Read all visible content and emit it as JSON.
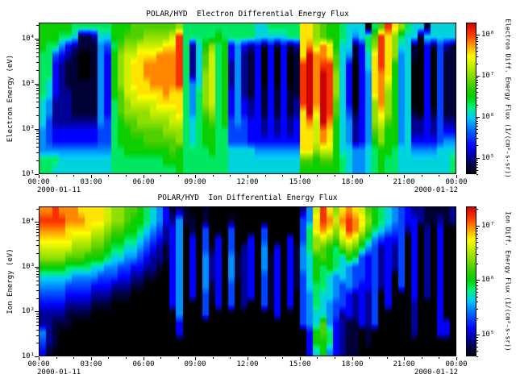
{
  "page": {
    "background": "#ffffff"
  },
  "colormap": {
    "stops": [
      [
        0.0,
        "#000000"
      ],
      [
        0.07,
        "#00003a"
      ],
      [
        0.13,
        "#000090"
      ],
      [
        0.2,
        "#0000ff"
      ],
      [
        0.3,
        "#0064ff"
      ],
      [
        0.38,
        "#00c8ff"
      ],
      [
        0.45,
        "#00f080"
      ],
      [
        0.52,
        "#00d000"
      ],
      [
        0.58,
        "#38cc00"
      ],
      [
        0.65,
        "#80dc00"
      ],
      [
        0.72,
        "#c0ec00"
      ],
      [
        0.78,
        "#ffff00"
      ],
      [
        0.85,
        "#ffa000"
      ],
      [
        0.92,
        "#ff3c00"
      ],
      [
        1.0,
        "#cc0000"
      ]
    ]
  },
  "chart_data": [
    {
      "type": "heatmap",
      "title": "POLAR/HYD  Electron Differential Energy Flux",
      "ylabel": "Electron Energy (eV)",
      "date_left": "2000-01-11",
      "date_right": "2000-01-12",
      "x_axis": {
        "unit": "time (HH:MM)",
        "range_hours": [
          0,
          24
        ],
        "major_tick_hours": 3,
        "minor_tick_hours": 1,
        "labels": [
          "00:00",
          "03:00",
          "06:00",
          "09:00",
          "12:00",
          "15:00",
          "18:00",
          "21:00",
          "00:00"
        ]
      },
      "y_axis": {
        "scale": "log",
        "range_log10_eV": [
          1.0,
          4.35
        ],
        "ticks": [
          {
            "label": "10⁴",
            "log10": 4
          },
          {
            "label": "10³",
            "log10": 3
          },
          {
            "label": "10²",
            "log10": 2
          },
          {
            "label": "10¹",
            "log10": 1
          }
        ]
      },
      "colorbar": {
        "label": "Electron Diff. Energy Flux (1/(cm²-s-sr))",
        "range_log10_flux": [
          4.6,
          8.3
        ],
        "ticks": [
          {
            "label": "10⁸",
            "log10": 8
          },
          {
            "label": "10⁷",
            "log10": 7
          },
          {
            "label": "10⁶",
            "log10": 6
          },
          {
            "label": "10⁵",
            "log10": 5
          }
        ]
      },
      "grid": {
        "description": "Electron flux spectrogram. 16 energy rows (top = ~10^4.35 eV down to 10^1 eV, log spaced) x 64 time columns (22.5 min each, 00:00 to 24:00 UT). Hex digit 0-15: 0 = black (flux <= 10^4.6), 15 = 10^8.3 (1/(cm^2-s-sr)), log-linear in between.",
        "rows": 16,
        "cols": 64,
        "data": [
          "888887777778889999999a777777777776677777cca9887666​79eca766166666",
          "8887761126688999aaaabe777778777776666677cca988765679eca766166666",
          "8775321115479aabbbbcce7268a7835323131312cdbdc866137aeca661031421",
          "774321001538abbcccddde7269b7835213030301cfddc965136ceca561030411",
          "773211001538abccddddde7269b7825213030301efdee963036cec8560030411",
          "773211001538abccddddde726ab7825213030301efdfea63035cdc8560030411",
          "763211111538abcccdddde756ab7825213030301efdfea63035cdb8560030411",
          "7632211115389bbccccdcc757ab7835213131311efdfea63035cda8560030411",
          "6522211115379abbbbcccc757ab7835323131312efdfe963035ada8560030411",
          "6522211115379aaaabbbbc7579a7835323131312cfcfe964135aca8561031411",
          "642222222547899aaaaabb767897845433232323cdbfd865235ab98562232422",
          "5433333334478899999aaa767887744433232323ccbdc8652359a88562232433",
          "543333333447888899999a767887744433333333ccbdc8652358a88563333455",
          "5555555555577888888898777787766665555555ccabb8665567887665555666",
          "7776666666677777777888777777766666666666998998765567877666666667",
          "7766666666677777777778777777766666666666888888765567877666666667"
        ]
      }
    },
    {
      "type": "heatmap",
      "title": "POLAR/HYD  Ion Differential Energy Flux",
      "ylabel": "Ion Energy (eV)",
      "date_left": "2000-01-11",
      "date_right": "2000-01-12",
      "x_axis": {
        "unit": "time (HH:MM)",
        "range_hours": [
          0,
          24
        ],
        "major_tick_hours": 3,
        "minor_tick_hours": 1,
        "labels": [
          "00:00",
          "03:00",
          "06:00",
          "09:00",
          "12:00",
          "15:00",
          "18:00",
          "21:00",
          "00:00"
        ]
      },
      "y_axis": {
        "scale": "log",
        "range_log10_eV": [
          1.0,
          4.35
        ],
        "ticks": [
          {
            "label": "10⁴",
            "log10": 4
          },
          {
            "label": "10³",
            "log10": 3
          },
          {
            "label": "10²",
            "log10": 2
          },
          {
            "label": "10¹",
            "log10": 1
          }
        ]
      },
      "colorbar": {
        "label": "Ion Diff. Energy Flux (1/(cm²-s-sr))",
        "range_log10_flux": [
          4.6,
          7.35
        ],
        "ticks": [
          {
            "label": "10⁷",
            "log10": 7
          },
          {
            "label": "10⁶",
            "log10": 6
          },
          {
            "label": "10⁵",
            "log10": 5
          }
        ]
      },
      "grid": {
        "description": "Ion flux spectrogram. 16 energy rows (top = ~10^4.35 eV down to 10^1 eV, log spaced) x 64 time columns (22.5 min each, 00:00 to 24:00 UT). Hex digit 0-15: 0 = black (flux <= 10^4.6), 15 = 10^7.35 (1/(cm^2-s-sr)), log-linear in between.",
        "rows": 16,
        "cols": 64,
        "data": [
          "ddedddccccbaa99876531210010000000000000025becacdcb98765432211112",
          "eeeedddcccbaa98876532511010001000000000045cedbdedca8765433211212",
          "ddddccccbba9988765423501040004000040000047cdcacedb97654423020300",
          "cccccbbbaa98877654323503040304003040003047aba9bcb975433403020300",
          "bbbbbaaa9987766543213503041304023050303157a9879a9754232403020300",
          "aaaa999888766554322135030523051230513031568987687434232403020300",
          "8888777766554433221035030523051230513031568787654434232403020300",
          "6666655554443322110035030523051230413031468765654434230403020300",
          "5555444433322211000035030513040230413031467765454334230403020300",
          "4444333322211100000035030413040230413030457665432324030003020300",
          "3333222211100000000035000403040200413030457654432324030002000300",
          "2222111100000000000005000400000000003000456654232324000002000300",
          "2211100000000000000003000000000000000000456953211324000002000330",
          "5210000000000000000003000000000000000000038973211010000002000330",
          "4210000000000000000000000000000000000000038873211010000000000000",
          "3100000000000000000000000000000000000000036853211000000000000000"
        ]
      }
    }
  ]
}
